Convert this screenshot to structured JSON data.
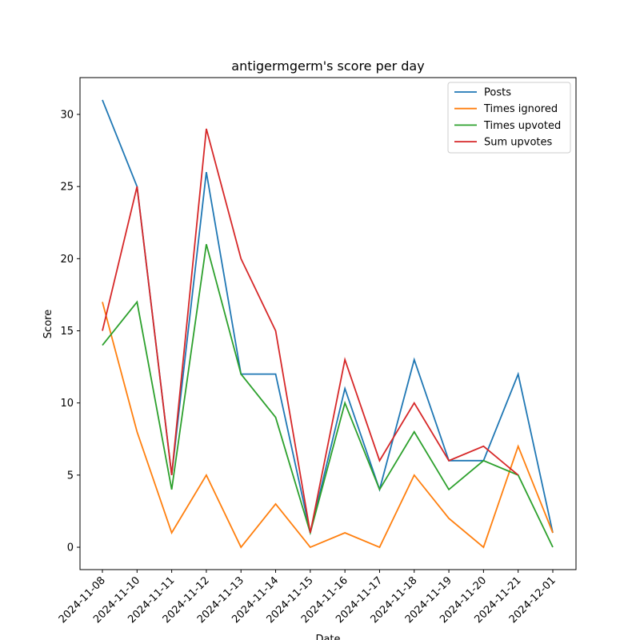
{
  "chart_data": {
    "type": "line",
    "title": "antigermgerm's score per day",
    "x_label": "Date",
    "y_label": "Score",
    "categories": [
      "2024-11-08",
      "2024-11-10",
      "2024-11-11",
      "2024-11-12",
      "2024-11-13",
      "2024-11-14",
      "2024-11-15",
      "2024-11-16",
      "2024-11-17",
      "2024-11-18",
      "2024-11-19",
      "2024-11-20",
      "2024-11-21",
      "2024-12-01"
    ],
    "series": [
      {
        "name": "Posts",
        "color": "#1f77b4",
        "values": [
          31,
          25,
          5,
          26,
          12,
          12,
          1,
          11,
          4,
          13,
          6,
          6,
          12,
          1
        ]
      },
      {
        "name": "Times ignored",
        "color": "#ff7f0e",
        "values": [
          17,
          8,
          1,
          5,
          0,
          3,
          0,
          1,
          0,
          5,
          2,
          0,
          7,
          1
        ]
      },
      {
        "name": "Times upvoted",
        "color": "#2ca02c",
        "values": [
          14,
          17,
          4,
          21,
          12,
          9,
          1,
          10,
          4,
          8,
          4,
          6,
          5,
          0
        ]
      },
      {
        "name": "Sum upvotes",
        "color": "#d62728",
        "values": [
          15,
          25,
          5,
          29,
          20,
          15,
          1,
          13,
          6,
          10,
          6,
          7,
          5,
          null
        ]
      }
    ],
    "ylim": [
      -1.55,
      32.55
    ],
    "yticks": [
      0,
      5,
      10,
      15,
      20,
      25,
      30
    ],
    "legend": "upper right"
  }
}
